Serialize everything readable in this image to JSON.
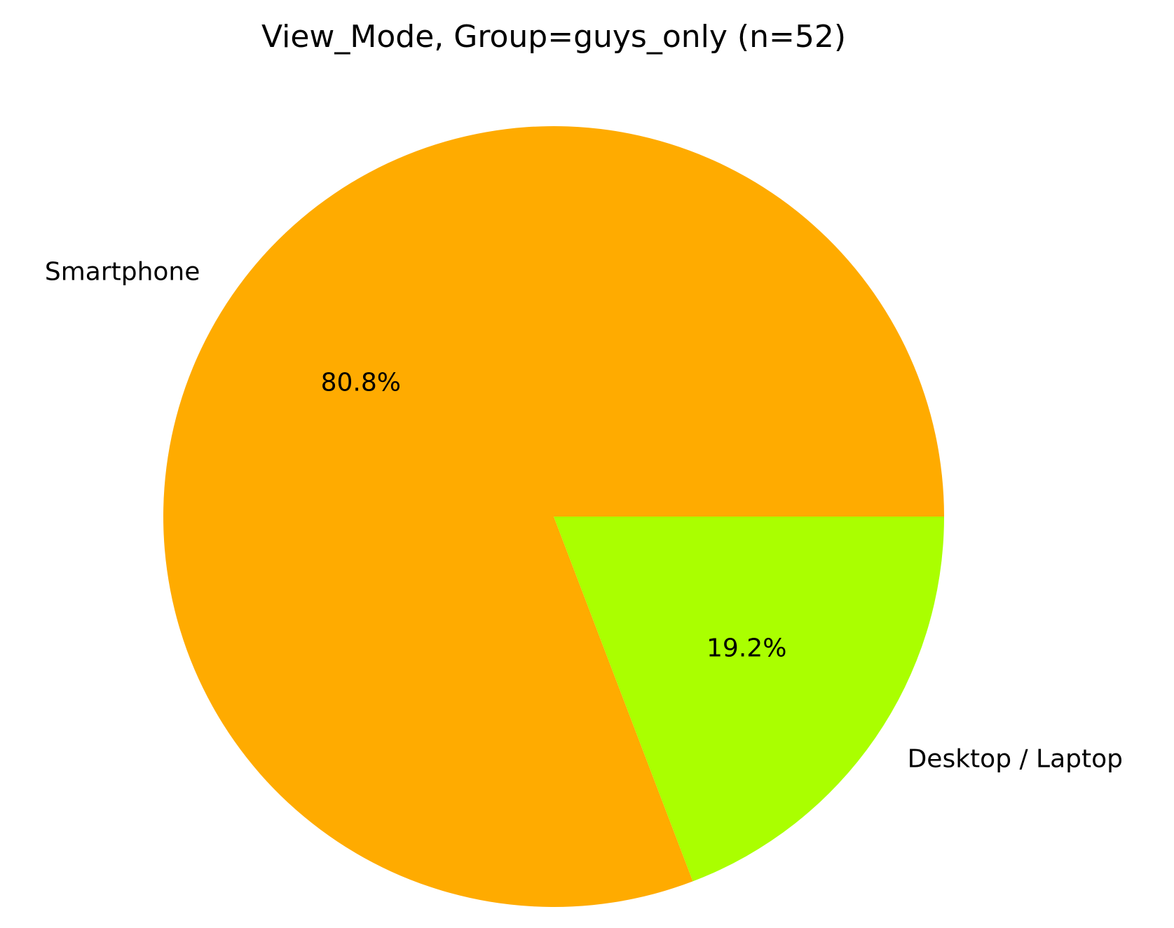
{
  "chart_data": {
    "type": "pie",
    "title": "View_Mode, Group=guys_only (n=52)",
    "categories": [
      "Smartphone",
      "Desktop / Laptop"
    ],
    "values": [
      80.8,
      19.2
    ],
    "value_labels": [
      "80.8%",
      "19.2%"
    ],
    "colors": [
      "#ffab00",
      "#aaff00"
    ],
    "start_angle_deg": 0,
    "direction": "counterclockwise",
    "legend": "none"
  }
}
